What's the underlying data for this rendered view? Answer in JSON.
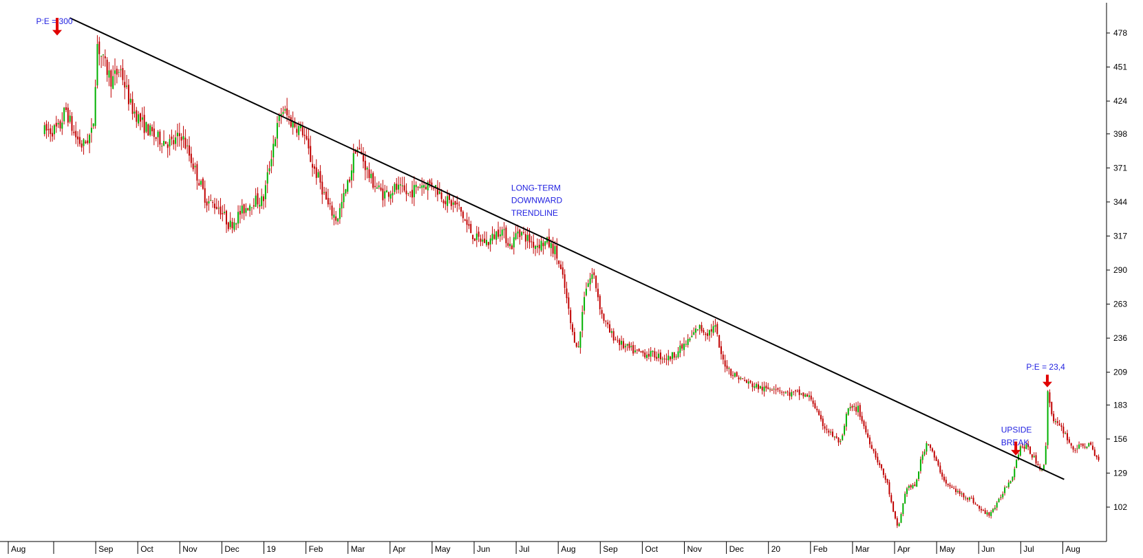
{
  "chart_data": {
    "type": "candlestick",
    "title": "",
    "xlabel": "",
    "ylabel": "",
    "ylim": [
      80,
      495
    ],
    "y_ticks": [
      102,
      129,
      156,
      183,
      209,
      236,
      263,
      290,
      317,
      344,
      371,
      398,
      424,
      451,
      478
    ],
    "x_month_labels": [
      "Aug",
      "Sep",
      "Oct",
      "Nov",
      "Dec",
      "19",
      "Feb",
      "Mar",
      "Apr",
      "May",
      "Jun",
      "Jul",
      "Aug",
      "Sep",
      "Oct",
      "Nov",
      "Dec",
      "20",
      "Feb",
      "Mar",
      "Apr",
      "May",
      "Jun",
      "Jul",
      "Aug"
    ],
    "x_month_index": [
      0,
      1,
      2,
      3,
      4,
      5,
      6,
      7,
      8,
      9,
      10,
      11,
      12,
      13,
      14,
      15,
      16,
      17,
      18,
      19,
      20,
      21,
      22,
      23,
      24
    ],
    "colors": {
      "up": "#00b000",
      "down": "#c00000",
      "trendline": "#000000",
      "annotation": "#1f1fe0",
      "arrow": "#e00000"
    },
    "price_path": [
      [
        -0.25,
        400
      ],
      [
        0.1,
        402
      ],
      [
        0.25,
        418
      ],
      [
        0.45,
        398
      ],
      [
        0.65,
        388
      ],
      [
        0.9,
        400
      ],
      [
        1.0,
        470
      ],
      [
        1.15,
        455
      ],
      [
        1.35,
        440
      ],
      [
        1.55,
        450
      ],
      [
        1.8,
        420
      ],
      [
        2.1,
        405
      ],
      [
        2.4,
        395
      ],
      [
        2.8,
        390
      ],
      [
        3.0,
        398
      ],
      [
        3.3,
        372
      ],
      [
        3.6,
        345
      ],
      [
        3.9,
        340
      ],
      [
        4.15,
        325
      ],
      [
        4.4,
        335
      ],
      [
        4.7,
        345
      ],
      [
        4.95,
        345
      ],
      [
        5.2,
        392
      ],
      [
        5.4,
        418
      ],
      [
        5.6,
        408
      ],
      [
        5.9,
        400
      ],
      [
        6.1,
        375
      ],
      [
        6.3,
        360
      ],
      [
        6.5,
        340
      ],
      [
        6.7,
        330
      ],
      [
        7.0,
        362
      ],
      [
        7.15,
        388
      ],
      [
        7.3,
        380
      ],
      [
        7.5,
        362
      ],
      [
        7.8,
        350
      ],
      [
        8.1,
        355
      ],
      [
        8.4,
        350
      ],
      [
        8.7,
        358
      ],
      [
        9.0,
        358
      ],
      [
        9.3,
        345
      ],
      [
        9.6,
        340
      ],
      [
        9.8,
        325
      ],
      [
        10.0,
        315
      ],
      [
        10.3,
        312
      ],
      [
        10.6,
        323
      ],
      [
        10.85,
        308
      ],
      [
        11.0,
        322
      ],
      [
        11.4,
        310
      ],
      [
        11.7,
        312
      ],
      [
        11.9,
        305
      ],
      [
        12.1,
        280
      ],
      [
        12.3,
        240
      ],
      [
        12.45,
        228
      ],
      [
        12.6,
        275
      ],
      [
        12.8,
        288
      ],
      [
        13.0,
        255
      ],
      [
        13.2,
        240
      ],
      [
        13.5,
        230
      ],
      [
        13.8,
        225
      ],
      [
        14.2,
        223
      ],
      [
        14.6,
        220
      ],
      [
        14.9,
        228
      ],
      [
        15.1,
        235
      ],
      [
        15.3,
        245
      ],
      [
        15.5,
        240
      ],
      [
        15.7,
        245
      ],
      [
        15.85,
        220
      ],
      [
        16.1,
        208
      ],
      [
        16.5,
        200
      ],
      [
        16.9,
        195
      ],
      [
        17.1,
        198
      ],
      [
        17.4,
        192
      ],
      [
        17.7,
        192
      ],
      [
        18.0,
        188
      ],
      [
        18.2,
        170
      ],
      [
        18.45,
        160
      ],
      [
        18.7,
        152
      ],
      [
        18.85,
        180
      ],
      [
        19.1,
        180
      ],
      [
        19.3,
        160
      ],
      [
        19.55,
        140
      ],
      [
        19.8,
        120
      ],
      [
        19.95,
        95
      ],
      [
        20.05,
        85
      ],
      [
        20.25,
        118
      ],
      [
        20.45,
        118
      ],
      [
        20.6,
        140
      ],
      [
        20.75,
        155
      ],
      [
        20.95,
        138
      ],
      [
        21.2,
        120
      ],
      [
        21.5,
        113
      ],
      [
        21.8,
        108
      ],
      [
        22.0,
        100
      ],
      [
        22.2,
        96
      ],
      [
        22.4,
        104
      ],
      [
        22.6,
        118
      ],
      [
        22.75,
        125
      ],
      [
        22.95,
        150
      ],
      [
        23.1,
        150
      ],
      [
        23.3,
        140
      ],
      [
        23.45,
        132
      ],
      [
        23.55,
        135
      ],
      [
        23.6,
        195
      ],
      [
        23.75,
        170
      ],
      [
        24.0,
        162
      ],
      [
        24.2,
        148
      ],
      [
        24.4,
        150
      ],
      [
        24.6,
        152
      ],
      [
        24.75,
        142
      ],
      [
        24.85,
        138
      ]
    ],
    "trendline": {
      "start": [
        0.35,
        490
      ],
      "end": [
        24.0,
        124
      ]
    },
    "annotations": [
      {
        "text": "P:E = 300",
        "x": -0.45,
        "y": 485,
        "arrow_x": 0.05,
        "arrow_top": 490,
        "arrow_tip": 476
      },
      {
        "text": "LONG-TERM",
        "x": 10.85,
        "y": 353
      },
      {
        "text": "DOWNWARD",
        "x": 10.85,
        "y": 343
      },
      {
        "text": "TRENDLINE",
        "x": 10.85,
        "y": 333
      },
      {
        "text": "UPSIDE",
        "x": 22.5,
        "y": 161
      },
      {
        "text": "BREAK",
        "x": 22.5,
        "y": 151
      },
      {
        "text": "P:E = 23,4",
        "x": 23.1,
        "y": 211,
        "arrow_x": 23.6,
        "arrow_top": 207,
        "arrow_tip": 197
      },
      {
        "text": "",
        "arrow_x": 22.85,
        "arrow_top": 154,
        "arrow_tip": 143
      }
    ]
  }
}
